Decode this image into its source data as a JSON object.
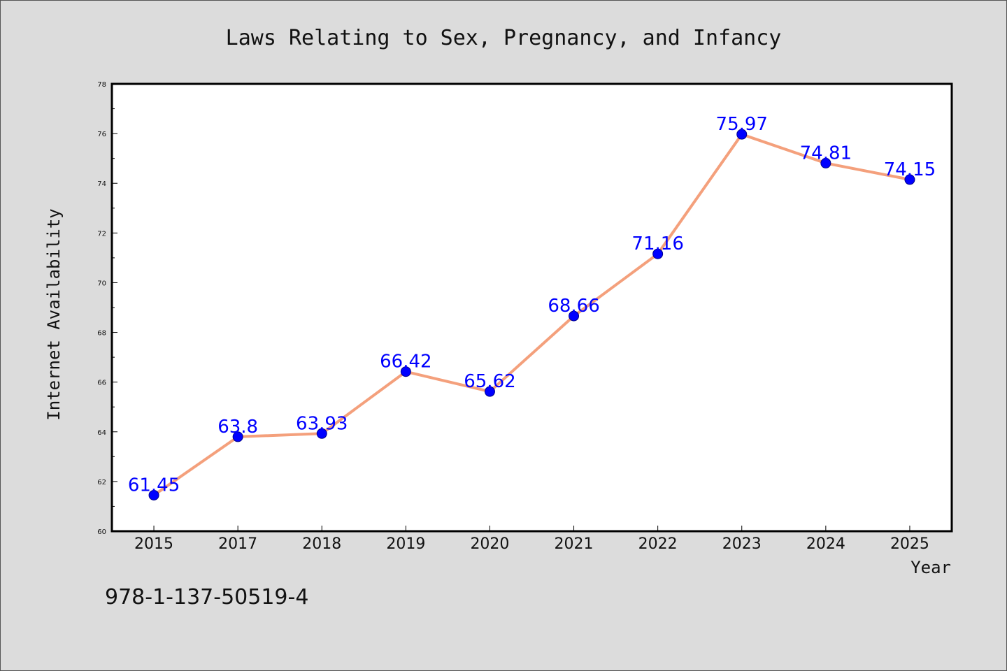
{
  "chart_data": {
    "type": "line",
    "title": "Laws Relating to Sex, Pregnancy, and Infancy",
    "xlabel": "Year",
    "ylabel": "Internet Availability",
    "categories": [
      "2015",
      "2017",
      "2018",
      "2019",
      "2020",
      "2021",
      "2022",
      "2023",
      "2024",
      "2025"
    ],
    "series": [
      {
        "values": [
          61.45,
          63.8,
          63.93,
          66.42,
          65.62,
          68.66,
          71.16,
          75.97,
          74.81,
          74.15
        ]
      }
    ],
    "data_labels": [
      "61.45",
      "63.8",
      "63.93",
      "66.42",
      "65.62",
      "68.66",
      "71.16",
      "75.97",
      "74.81",
      "74.15"
    ],
    "ylim": [
      60,
      78
    ],
    "yticks": [
      "60",
      "62",
      "64",
      "66",
      "68",
      "70",
      "72",
      "74",
      "76",
      "78"
    ],
    "grid": false,
    "line_color": "#f4a07c",
    "marker_color": "#0000ff",
    "label_color": "#0000ff"
  },
  "annotation": {
    "isbn": "978-1-137-50519-4"
  }
}
